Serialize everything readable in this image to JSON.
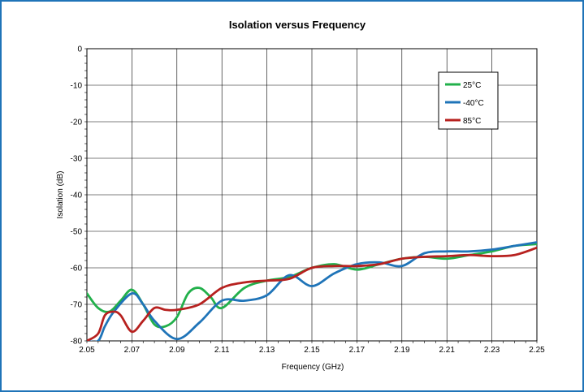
{
  "chart_data": {
    "type": "line",
    "title": "Isolation versus Frequency",
    "xlabel": "Frequency (GHz)",
    "ylabel": "Isolation (dB)",
    "xlim": [
      2.05,
      2.25
    ],
    "ylim": [
      -80,
      0
    ],
    "xticks": [
      2.05,
      2.07,
      2.09,
      2.11,
      2.13,
      2.15,
      2.17,
      2.19,
      2.21,
      2.23,
      2.25
    ],
    "xtick_labels": [
      "2.05",
      "2.07",
      "2.09",
      "2.11",
      "2.13",
      "2.15",
      "2.17",
      "2.19",
      "2.21",
      "2.23",
      "2.25"
    ],
    "yticks": [
      0,
      -10,
      -20,
      -30,
      -40,
      -50,
      -60,
      -70,
      -80
    ],
    "ytick_labels": [
      "0",
      "-10",
      "-20",
      "-30",
      "-40",
      "-50",
      "-60",
      "-70",
      "-80"
    ],
    "grid": true,
    "legend_position": "top-right",
    "series": [
      {
        "name": "25°C",
        "color": "#22b04b",
        "x": [
          2.05,
          2.055,
          2.06,
          2.065,
          2.07,
          2.075,
          2.08,
          2.085,
          2.09,
          2.095,
          2.1,
          2.105,
          2.11,
          2.12,
          2.13,
          2.14,
          2.15,
          2.16,
          2.17,
          2.18,
          2.19,
          2.2,
          2.21,
          2.22,
          2.23,
          2.24,
          2.25
        ],
        "y": [
          -67,
          -71,
          -72,
          -69,
          -66,
          -70,
          -75.5,
          -76,
          -73.5,
          -67,
          -65.5,
          -68,
          -71,
          -65.5,
          -63.5,
          -62.5,
          -60,
          -59,
          -60.5,
          -59,
          -57.5,
          -57,
          -57.5,
          -56.5,
          -55.5,
          -54,
          -53.5
        ]
      },
      {
        "name": "-40°C",
        "color": "#1f74b8",
        "x": [
          2.05,
          2.055,
          2.058,
          2.062,
          2.07,
          2.075,
          2.08,
          2.09,
          2.1,
          2.11,
          2.12,
          2.13,
          2.14,
          2.15,
          2.16,
          2.17,
          2.18,
          2.19,
          2.2,
          2.21,
          2.22,
          2.23,
          2.24,
          2.25
        ],
        "y": [
          -80,
          -80,
          -76,
          -72,
          -67,
          -70,
          -74.5,
          -79.5,
          -75,
          -69,
          -69,
          -67.5,
          -62,
          -65,
          -61.5,
          -59,
          -58.5,
          -59.5,
          -56,
          -55.5,
          -55.5,
          -55,
          -54,
          -53
        ]
      },
      {
        "name": "85°C",
        "color": "#b7211f",
        "x": [
          2.05,
          2.055,
          2.058,
          2.062,
          2.065,
          2.07,
          2.075,
          2.08,
          2.085,
          2.09,
          2.1,
          2.11,
          2.12,
          2.13,
          2.14,
          2.15,
          2.16,
          2.17,
          2.18,
          2.19,
          2.2,
          2.21,
          2.22,
          2.23,
          2.24,
          2.25
        ],
        "y": [
          -80,
          -78,
          -73,
          -72,
          -73,
          -77.5,
          -74.5,
          -71,
          -71.5,
          -71.5,
          -70,
          -65.5,
          -64,
          -63.5,
          -63,
          -60,
          -59.5,
          -59.5,
          -59,
          -57.5,
          -57,
          -56.8,
          -56.5,
          -56.8,
          -56.5,
          -54.5
        ]
      }
    ]
  }
}
